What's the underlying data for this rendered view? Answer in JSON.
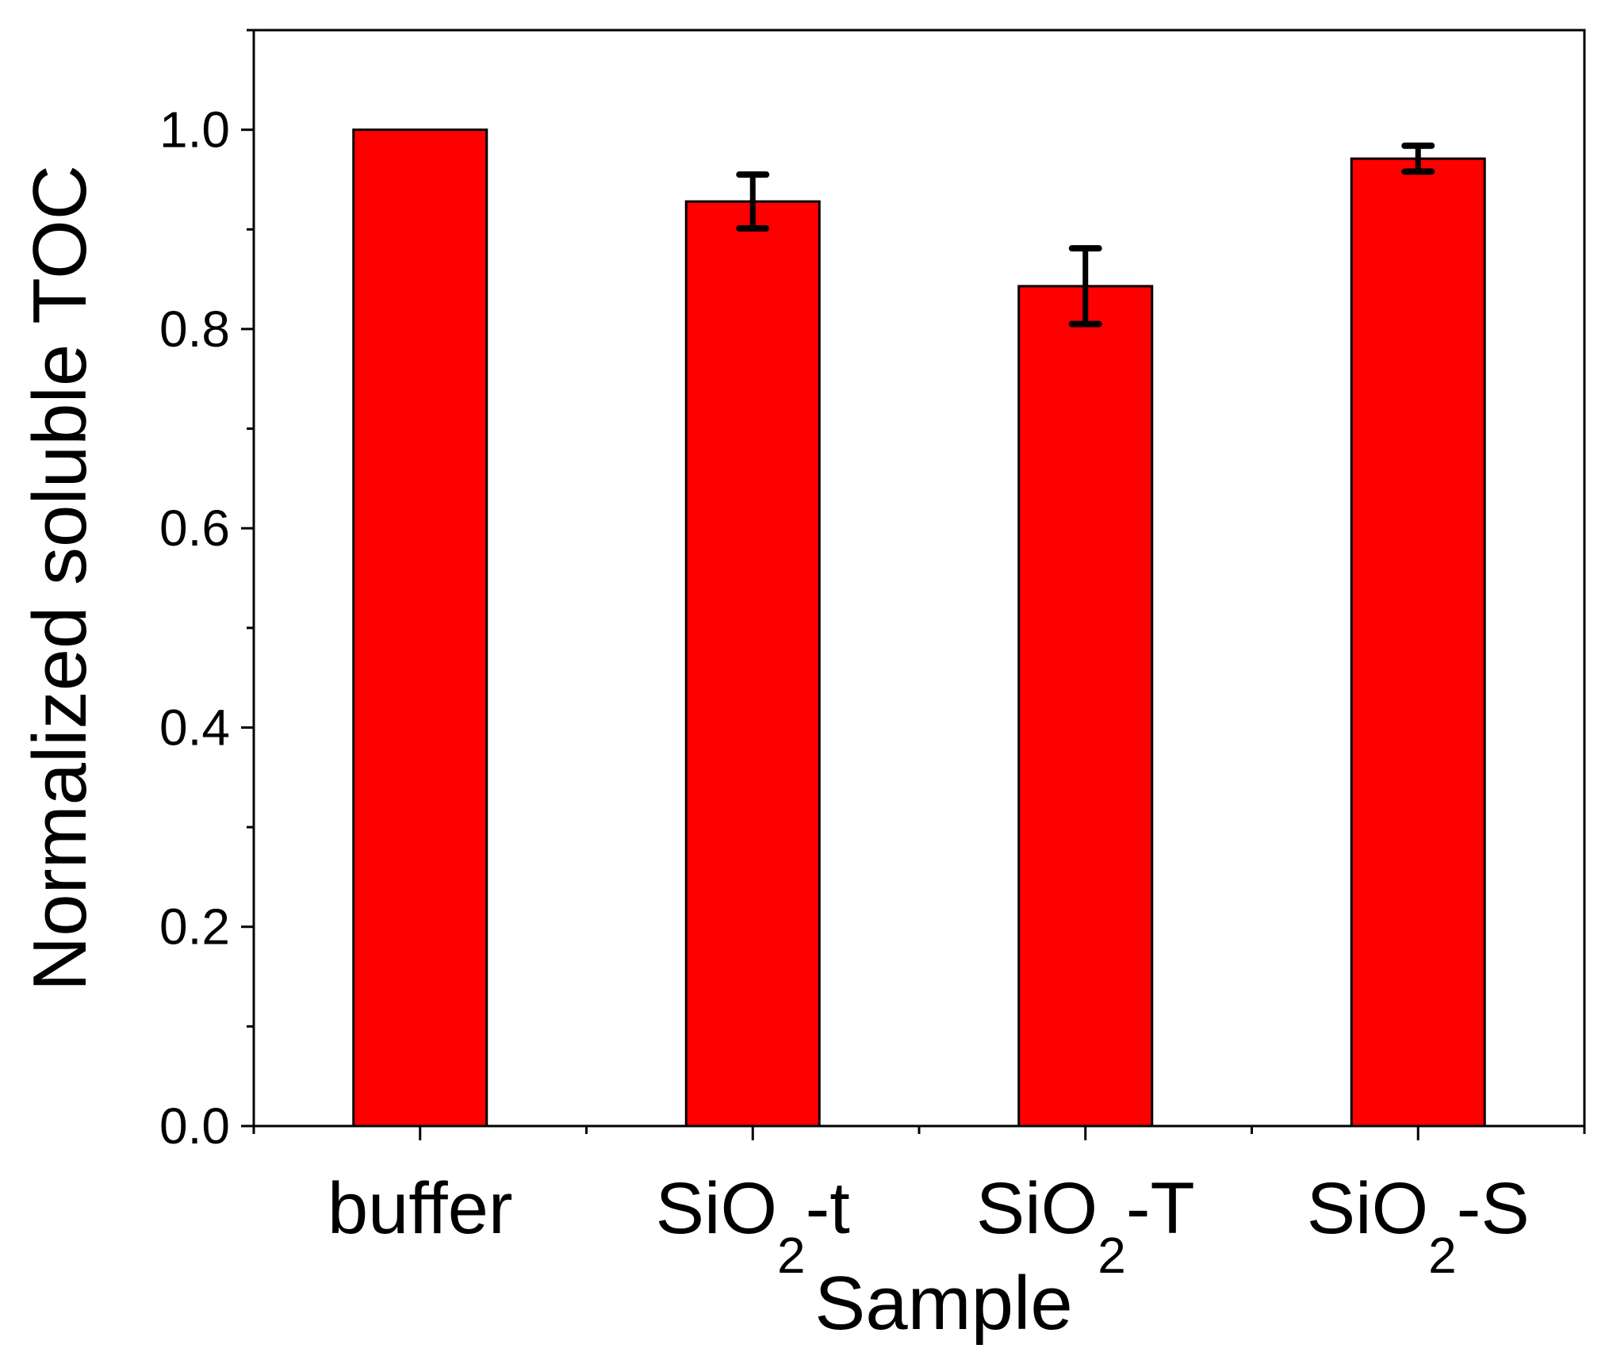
{
  "chart_data": {
    "type": "bar",
    "title": "",
    "xlabel": "Sample",
    "ylabel": "Normalized soluble TOC",
    "ylim": [
      0.0,
      1.1
    ],
    "yticks": [
      "0.0",
      "0.2",
      "0.4",
      "0.6",
      "0.8",
      "1.0"
    ],
    "grid": false,
    "legend": "none",
    "bar_color": "#ff0000",
    "categories": [
      {
        "base": "buffer",
        "sub": "",
        "suffix": ""
      },
      {
        "base": "SiO",
        "sub": "2",
        "suffix": "-t"
      },
      {
        "base": "SiO",
        "sub": "2",
        "suffix": "-T"
      },
      {
        "base": "SiO",
        "sub": "2",
        "suffix": "-S"
      }
    ],
    "values": [
      1.0,
      0.928,
      0.843,
      0.971
    ],
    "errors": [
      0,
      0.027,
      0.038,
      0.013
    ]
  }
}
